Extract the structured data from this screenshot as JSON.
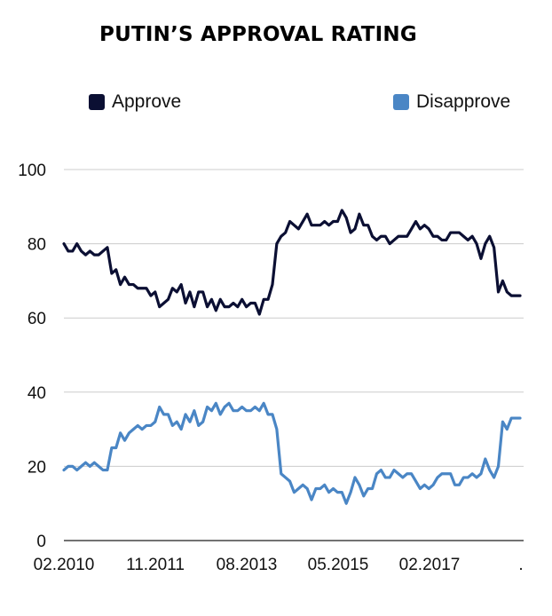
{
  "chart_data": {
    "type": "line",
    "title": "PUTIN’S APPROVAL RATING",
    "xlabel": "",
    "ylabel": "",
    "ylim": [
      0,
      100
    ],
    "yticks": [
      "0",
      "20",
      "40",
      "60",
      "80",
      "100"
    ],
    "xticks": [
      "02.2010",
      "11.2011",
      "08.2013",
      "05.2015",
      "02.2017",
      "."
    ],
    "grid": true,
    "legend": "top",
    "series": [
      {
        "name": "Approve",
        "color": "#0b0f33",
        "values": [
          80,
          78,
          78,
          80,
          78,
          77,
          78,
          77,
          77,
          78,
          79,
          72,
          73,
          69,
          71,
          69,
          69,
          68,
          68,
          68,
          66,
          67,
          63,
          64,
          65,
          68,
          67,
          69,
          64,
          67,
          63,
          67,
          67,
          63,
          65,
          62,
          65,
          63,
          63,
          64,
          63,
          65,
          63,
          64,
          64,
          61,
          65,
          65,
          69,
          80,
          82,
          83,
          86,
          85,
          84,
          86,
          88,
          85,
          85,
          85,
          86,
          85,
          86,
          86,
          89,
          87,
          83,
          84,
          88,
          85,
          85,
          82,
          81,
          82,
          82,
          80,
          81,
          82,
          82,
          82,
          84,
          86,
          84,
          85,
          84,
          82,
          82,
          81,
          81,
          83,
          83,
          83,
          82,
          81,
          82,
          80,
          76,
          80,
          82,
          79,
          67,
          70,
          67,
          66,
          66,
          66
        ]
      },
      {
        "name": "Disapprove",
        "color": "#4a86c5",
        "values": [
          19,
          20,
          20,
          19,
          20,
          21,
          20,
          21,
          20,
          19,
          19,
          25,
          25,
          29,
          27,
          29,
          30,
          31,
          30,
          31,
          31,
          32,
          36,
          34,
          34,
          31,
          32,
          30,
          34,
          32,
          35,
          31,
          32,
          36,
          35,
          37,
          34,
          36,
          37,
          35,
          35,
          36,
          35,
          35,
          36,
          35,
          37,
          34,
          34,
          30,
          18,
          17,
          16,
          13,
          14,
          15,
          14,
          11,
          14,
          14,
          15,
          13,
          14,
          13,
          13,
          10,
          13,
          17,
          15,
          12,
          14,
          14,
          18,
          19,
          17,
          17,
          19,
          18,
          17,
          18,
          18,
          16,
          14,
          15,
          14,
          15,
          17,
          18,
          18,
          18,
          15,
          15,
          17,
          17,
          18,
          17,
          18,
          22,
          19,
          17,
          20,
          32,
          30,
          33,
          33,
          33
        ]
      }
    ]
  }
}
